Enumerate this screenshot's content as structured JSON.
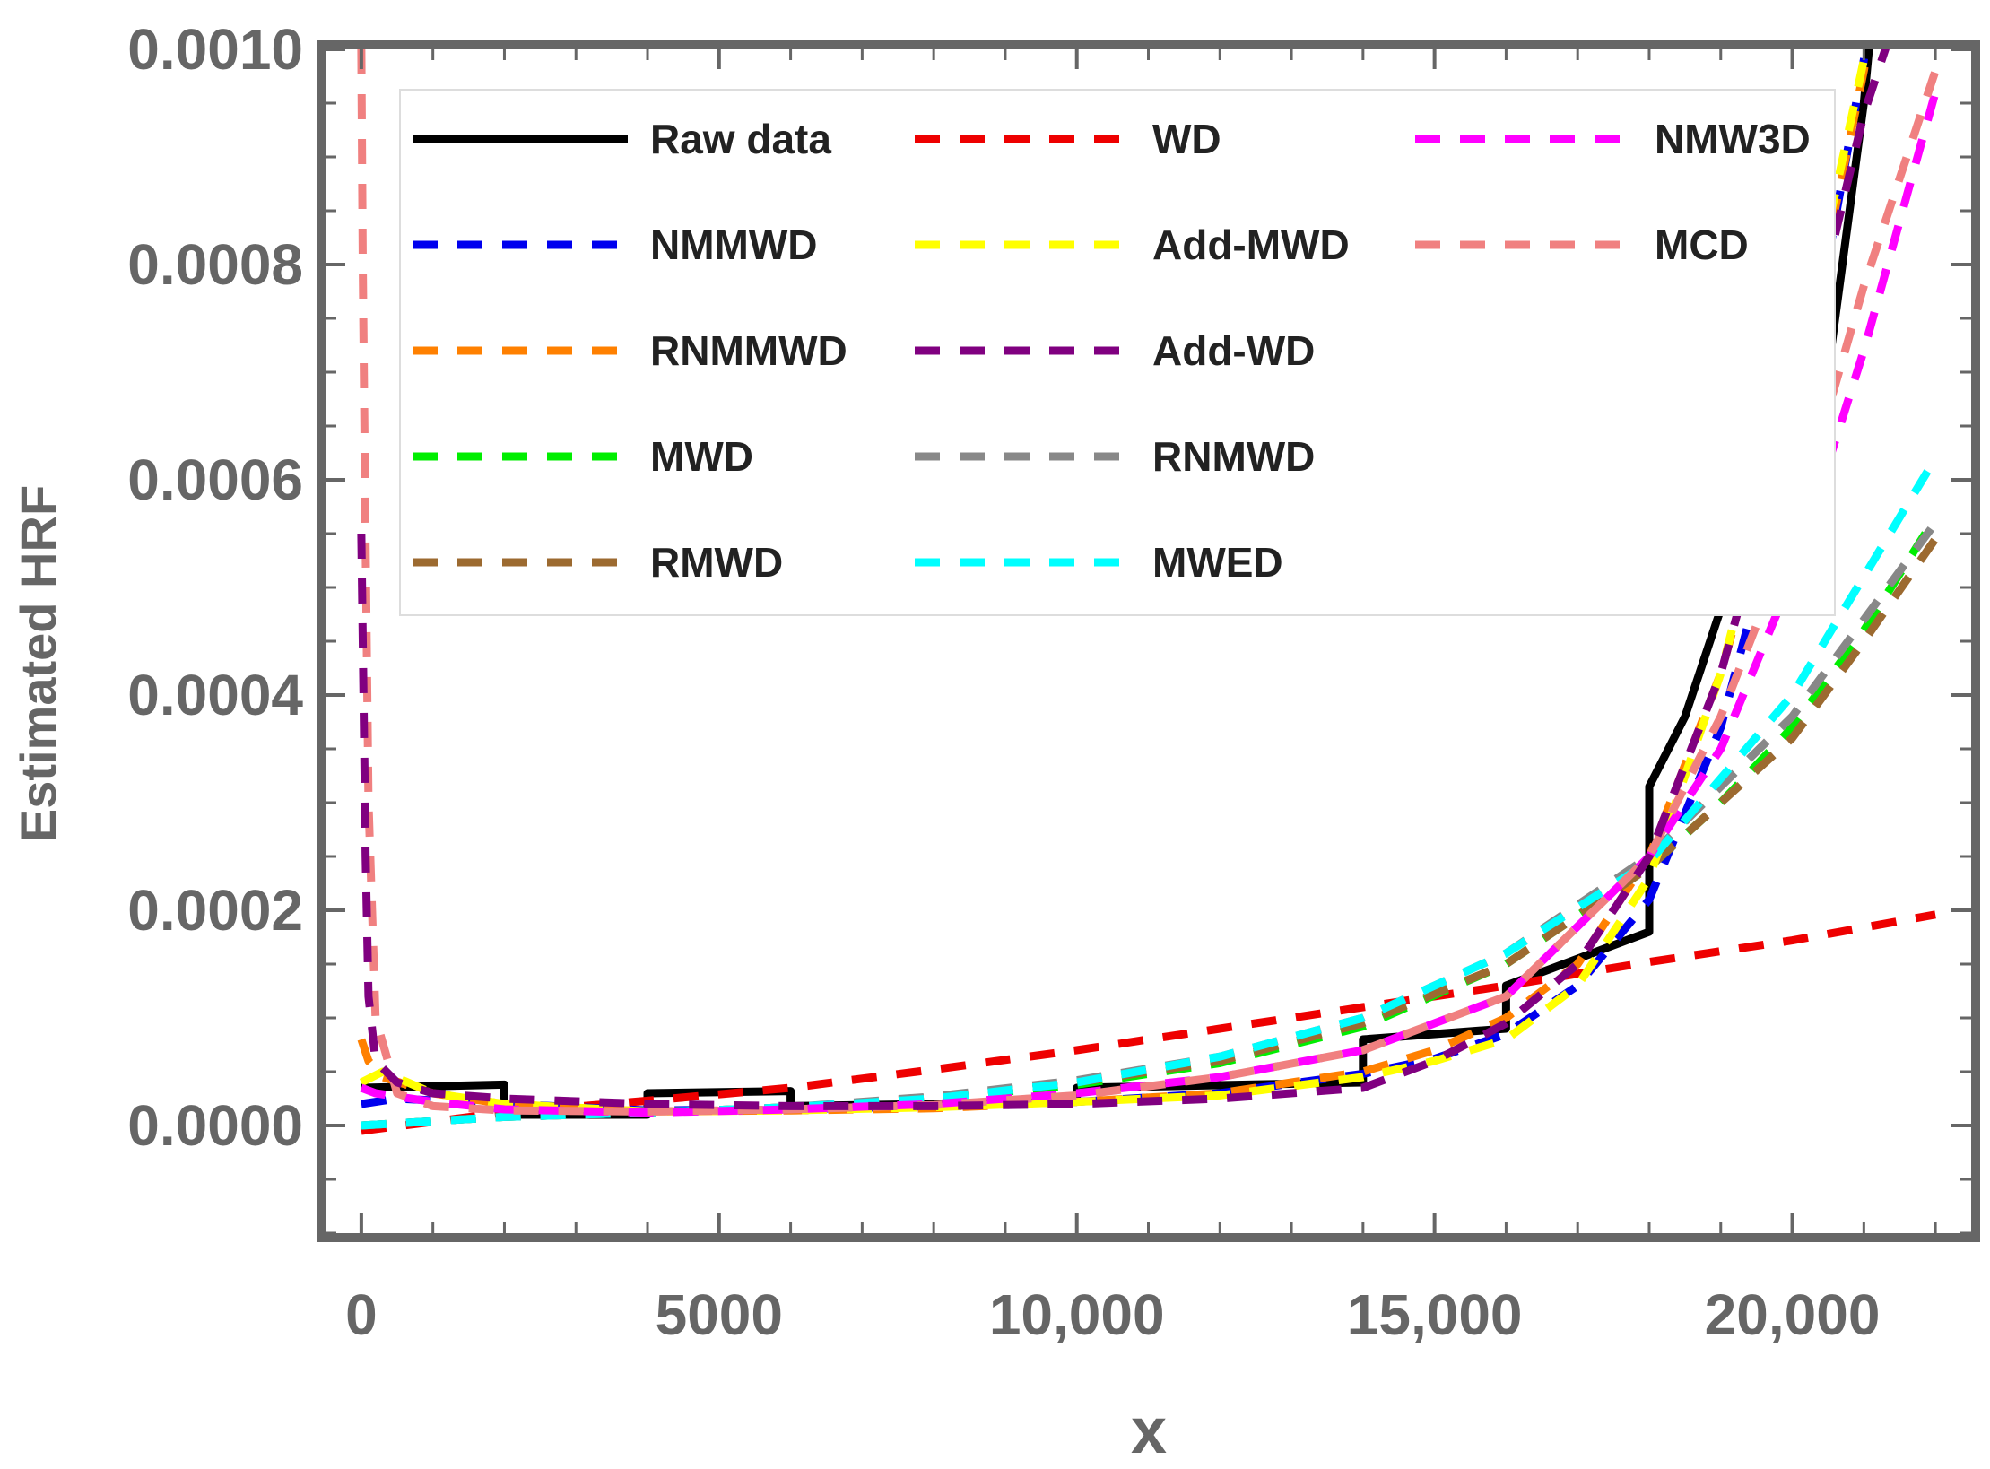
{
  "chart_data": {
    "type": "line",
    "title": "",
    "xlabel": "x",
    "ylabel": "Estimated HRF",
    "xlim": [
      -500,
      22500
    ],
    "ylim": [
      -0.0001,
      0.001
    ],
    "x_ticks": [
      0,
      5000,
      10000,
      15000,
      20000
    ],
    "x_tick_labels": [
      "0",
      "5000",
      "10,000",
      "15,000",
      "20,000"
    ],
    "y_ticks": [
      0.0,
      0.0002,
      0.0004,
      0.0006,
      0.0008,
      0.001
    ],
    "y_tick_labels": [
      "0.0000",
      "0.0002",
      "0.0004",
      "0.0006",
      "0.0008",
      "0.0010"
    ],
    "grid": false,
    "legend_position": "top",
    "series": [
      {
        "name": "Raw data",
        "color": "#000000",
        "style": "solid",
        "points": [
          [
            0,
            3.5e-05
          ],
          [
            2000,
            3.8e-05
          ],
          [
            2000,
            1e-05
          ],
          [
            4000,
            1e-05
          ],
          [
            4000,
            3e-05
          ],
          [
            6000,
            3.2e-05
          ],
          [
            6000,
            1.8e-05
          ],
          [
            10000,
            2.2e-05
          ],
          [
            10000,
            3.5e-05
          ],
          [
            14000,
            4e-05
          ],
          [
            14000,
            8e-05
          ],
          [
            16000,
            9e-05
          ],
          [
            16000,
            0.00013
          ],
          [
            18000,
            0.00018
          ],
          [
            18000,
            0.000315
          ],
          [
            18500,
            0.00038
          ],
          [
            19000,
            0.00048
          ],
          [
            19500,
            0.00062
          ],
          [
            20000,
            0.00086
          ],
          [
            20000,
            0.0005
          ],
          [
            20500,
            0.0007
          ],
          [
            21000,
            0.00095
          ],
          [
            21100,
            0.00102
          ]
        ]
      },
      {
        "name": "NMMWD",
        "color": "#0000ee",
        "style": "dashed",
        "points": [
          [
            0,
            2e-05
          ],
          [
            500,
            2.5e-05
          ],
          [
            2000,
            2e-05
          ],
          [
            4000,
            1.4e-05
          ],
          [
            6000,
            1.5e-05
          ],
          [
            8000,
            1.8e-05
          ],
          [
            10000,
            2.2e-05
          ],
          [
            12000,
            3e-05
          ],
          [
            14000,
            4.8e-05
          ],
          [
            15000,
            6.2e-05
          ],
          [
            16000,
            8.5e-05
          ],
          [
            17000,
            0.00013
          ],
          [
            18000,
            0.00021
          ],
          [
            19000,
            0.00037
          ],
          [
            20000,
            0.00062
          ],
          [
            21000,
            0.00099
          ],
          [
            21100,
            0.00103
          ]
        ]
      },
      {
        "name": "RNMMWD",
        "color": "#ff8000",
        "style": "dashed",
        "points": [
          [
            0,
            8e-05
          ],
          [
            100,
            6e-05
          ],
          [
            300,
            4.5e-05
          ],
          [
            1000,
            3e-05
          ],
          [
            2000,
            2e-05
          ],
          [
            4000,
            1.3e-05
          ],
          [
            6000,
            1.4e-05
          ],
          [
            8000,
            1.6e-05
          ],
          [
            10000,
            2.2e-05
          ],
          [
            12000,
            3e-05
          ],
          [
            14000,
            5e-05
          ],
          [
            15000,
            7e-05
          ],
          [
            16000,
            0.0001
          ],
          [
            17000,
            0.00015
          ],
          [
            18000,
            0.00025
          ],
          [
            19000,
            0.00042
          ],
          [
            20000,
            0.00066
          ],
          [
            21000,
            0.00098
          ],
          [
            21100,
            0.00102
          ]
        ]
      },
      {
        "name": "MWD",
        "color": "#00ee00",
        "style": "dashed",
        "points": [
          [
            0,
            0.0
          ],
          [
            2000,
            8e-06
          ],
          [
            4000,
            1.2e-05
          ],
          [
            6000,
            1.7e-05
          ],
          [
            8000,
            2.5e-05
          ],
          [
            10000,
            3.8e-05
          ],
          [
            12000,
            5.8e-05
          ],
          [
            14000,
            9.2e-05
          ],
          [
            16000,
            0.00015
          ],
          [
            18000,
            0.00024
          ],
          [
            19000,
            0.0003
          ],
          [
            20000,
            0.00037
          ],
          [
            21000,
            0.00046
          ],
          [
            22000,
            0.000565
          ]
        ]
      },
      {
        "name": "RMWD",
        "color": "#9c6a30",
        "style": "dashed",
        "points": [
          [
            0,
            0.0
          ],
          [
            2000,
            8e-06
          ],
          [
            4000,
            1.2e-05
          ],
          [
            6000,
            1.7e-05
          ],
          [
            8000,
            2.6e-05
          ],
          [
            10000,
            4e-05
          ],
          [
            12000,
            6e-05
          ],
          [
            14000,
            9.5e-05
          ],
          [
            16000,
            0.00015
          ],
          [
            18000,
            0.00024
          ],
          [
            19000,
            0.0003
          ],
          [
            20000,
            0.00036
          ],
          [
            21000,
            0.00045
          ],
          [
            22000,
            0.000545
          ]
        ]
      },
      {
        "name": "WD",
        "color": "#ee0000",
        "style": "dashed",
        "points": [
          [
            0,
            -5e-06
          ],
          [
            2000,
            1.2e-05
          ],
          [
            4000,
            2.3e-05
          ],
          [
            6000,
            3.5e-05
          ],
          [
            8000,
            5.2e-05
          ],
          [
            10000,
            7e-05
          ],
          [
            12000,
            9e-05
          ],
          [
            14000,
            0.00011
          ],
          [
            16000,
            0.00013
          ],
          [
            18000,
            0.000152
          ],
          [
            20000,
            0.000172
          ],
          [
            22000,
            0.000196
          ]
        ]
      },
      {
        "name": "Add-MWD",
        "color": "#ffff00",
        "style": "dashed",
        "points": [
          [
            0,
            4e-05
          ],
          [
            300,
            5e-05
          ],
          [
            1000,
            3e-05
          ],
          [
            2000,
            2e-05
          ],
          [
            4000,
            1.3e-05
          ],
          [
            6000,
            1.4e-05
          ],
          [
            8000,
            1.7e-05
          ],
          [
            10000,
            2.2e-05
          ],
          [
            12000,
            2.8e-05
          ],
          [
            14000,
            4.5e-05
          ],
          [
            15000,
            6e-05
          ],
          [
            16000,
            8e-05
          ],
          [
            17000,
            0.00013
          ],
          [
            18000,
            0.00023
          ],
          [
            19000,
            0.00042
          ],
          [
            20000,
            0.00068
          ],
          [
            21000,
            0.00099
          ],
          [
            21100,
            0.00102
          ]
        ]
      },
      {
        "name": "Add-WD",
        "color": "#800080",
        "style": "dashed",
        "points": [
          [
            0,
            0.00055
          ],
          [
            30,
            0.0004
          ],
          [
            60,
            0.00025
          ],
          [
            100,
            0.00012
          ],
          [
            200,
            6e-05
          ],
          [
            500,
            4e-05
          ],
          [
            1000,
            3e-05
          ],
          [
            2000,
            2.5e-05
          ],
          [
            4000,
            2e-05
          ],
          [
            6000,
            1.8e-05
          ],
          [
            8000,
            1.8e-05
          ],
          [
            10000,
            2e-05
          ],
          [
            12000,
            2.5e-05
          ],
          [
            14000,
            3.5e-05
          ],
          [
            15000,
            6e-05
          ],
          [
            16000,
            9.5e-05
          ],
          [
            17000,
            0.00015
          ],
          [
            18000,
            0.00025
          ],
          [
            19000,
            0.00042
          ],
          [
            20000,
            0.00066
          ],
          [
            21000,
            0.00094
          ],
          [
            21400,
            0.00102
          ]
        ]
      },
      {
        "name": "RNMWD",
        "color": "#888888",
        "style": "dashed",
        "points": [
          [
            0,
            0.0
          ],
          [
            2000,
            8e-06
          ],
          [
            4000,
            1.2e-05
          ],
          [
            6000,
            1.7e-05
          ],
          [
            8000,
            2.7e-05
          ],
          [
            10000,
            4.2e-05
          ],
          [
            12000,
            6.4e-05
          ],
          [
            14000,
            0.0001
          ],
          [
            16000,
            0.00016
          ],
          [
            18000,
            0.00025
          ],
          [
            20000,
            0.00038
          ],
          [
            22000,
            0.00056
          ]
        ]
      },
      {
        "name": "MWED",
        "color": "#00ffff",
        "style": "dashed",
        "points": [
          [
            0,
            0.0
          ],
          [
            2000,
            8e-06
          ],
          [
            4000,
            1.2e-05
          ],
          [
            6000,
            1.7e-05
          ],
          [
            8000,
            2.5e-05
          ],
          [
            10000,
            4e-05
          ],
          [
            12000,
            6.4e-05
          ],
          [
            14000,
            0.0001
          ],
          [
            16000,
            0.00016
          ],
          [
            18000,
            0.000245
          ],
          [
            20000,
            0.0004
          ],
          [
            22000,
            0.00062
          ]
        ]
      },
      {
        "name": "NMW3D",
        "color": "#ff00ff",
        "style": "dashed",
        "points": [
          [
            0,
            3.5e-05
          ],
          [
            200,
            3e-05
          ],
          [
            1000,
            2.2e-05
          ],
          [
            2000,
            1.5e-05
          ],
          [
            4000,
            1.2e-05
          ],
          [
            6000,
            1.5e-05
          ],
          [
            8000,
            2e-05
          ],
          [
            10000,
            3e-05
          ],
          [
            12000,
            4.5e-05
          ],
          [
            14000,
            7e-05
          ],
          [
            16000,
            0.00012
          ],
          [
            18000,
            0.00025
          ],
          [
            19000,
            0.00035
          ],
          [
            20000,
            0.00051
          ],
          [
            21000,
            0.00072
          ],
          [
            22000,
            0.00096
          ]
        ]
      },
      {
        "name": "MCD",
        "color": "#f08080",
        "style": "dashed",
        "points": [
          [
            0,
            0.001
          ],
          [
            20,
            0.0008
          ],
          [
            50,
            0.0006
          ],
          [
            100,
            0.0003
          ],
          [
            200,
            0.0001
          ],
          [
            500,
            3e-05
          ],
          [
            1000,
            1.8e-05
          ],
          [
            2000,
            1.4e-05
          ],
          [
            4000,
            1.3e-05
          ],
          [
            6000,
            1.5e-05
          ],
          [
            8000,
            1.9e-05
          ],
          [
            10000,
            2.8e-05
          ],
          [
            12000,
            4.5e-05
          ],
          [
            14000,
            7e-05
          ],
          [
            16000,
            0.00012
          ],
          [
            18000,
            0.00025
          ],
          [
            19000,
            0.00038
          ],
          [
            20000,
            0.00055
          ],
          [
            21000,
            0.00078
          ],
          [
            22000,
            0.00098
          ]
        ]
      }
    ]
  }
}
